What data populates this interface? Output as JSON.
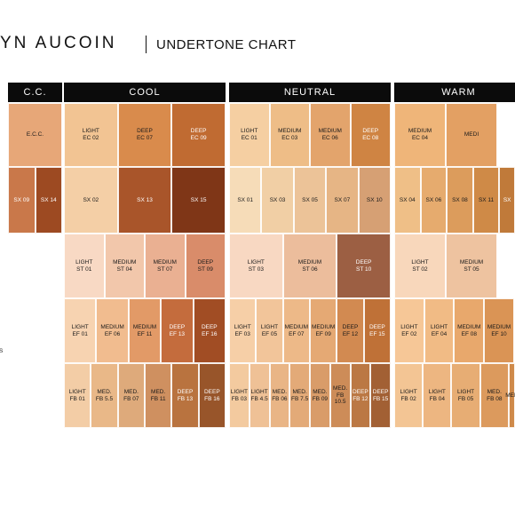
{
  "header": {
    "brand": "YN AUCOIN",
    "subtitle": "UNDERTONE CHART"
  },
  "side_label": "S",
  "columns": [
    {
      "id": "cc",
      "label": "C.C."
    },
    {
      "id": "cool",
      "label": "COOL"
    },
    {
      "id": "neutral",
      "label": "NEUTRAL"
    },
    {
      "id": "warm",
      "label": "WARM"
    }
  ],
  "rows": {
    "ec": {
      "cc": [
        {
          "label": "E.C.C.",
          "color": "#e7a778"
        }
      ],
      "cool": [
        {
          "label": "LIGHT\nEC 02",
          "color": "#f2c493"
        },
        {
          "label": "DEEP\nEC 07",
          "color": "#d98b4c"
        },
        {
          "label": "DEEP\nEC 09",
          "color": "#c06b32"
        }
      ],
      "neutral": [
        {
          "label": "LIGHT\nEC 01",
          "color": "#f5cfa2"
        },
        {
          "label": "MEDIUM\nEC 03",
          "color": "#eebd87"
        },
        {
          "label": "MEDIUM\nEC 06",
          "color": "#e3a46c"
        },
        {
          "label": "DEEP\nEC 08",
          "color": "#cf8443"
        }
      ],
      "warm": [
        {
          "label": "MEDIUM\nEC 04",
          "color": "#efb579"
        },
        {
          "label": "MEDI",
          "color": "#e3a063"
        }
      ]
    },
    "sx": {
      "cc": [
        {
          "label": "SX 09",
          "color": "#c9784a"
        },
        {
          "label": "SX 14",
          "color": "#9d4a22"
        }
      ],
      "cool": [
        {
          "label": "SX 02",
          "color": "#f4cfa6"
        },
        {
          "label": "SX 13",
          "color": "#a9552a"
        },
        {
          "label": "SX 15",
          "color": "#7f3617"
        }
      ],
      "neutral": [
        {
          "label": "SX 01",
          "color": "#f6dcb8"
        },
        {
          "label": "SX 03",
          "color": "#f1cfa5"
        },
        {
          "label": "SX 05",
          "color": "#ecc398"
        },
        {
          "label": "SX 07",
          "color": "#e6b585"
        },
        {
          "label": "SX 10",
          "color": "#d6a074"
        }
      ],
      "warm": [
        {
          "label": "SX 04",
          "color": "#efbf87"
        },
        {
          "label": "SX 06",
          "color": "#e6ab6e"
        },
        {
          "label": "SX 08",
          "color": "#dc9c5c"
        },
        {
          "label": "SX 11",
          "color": "#cf8a47"
        },
        {
          "label": "SX",
          "color": "#c07a3a"
        }
      ]
    },
    "st": {
      "cool": [
        {
          "label": "LIGHT\nST 01",
          "color": "#f8d9c4"
        },
        {
          "label": "MEDIUM\nST 04",
          "color": "#f2c7ab"
        },
        {
          "label": "MEDIUM\nST 07",
          "color": "#eab092"
        },
        {
          "label": "DEEP\nST 09",
          "color": "#d98c6a"
        }
      ],
      "neutral": [
        {
          "label": "LIGHT\nST 03",
          "color": "#f8d8c2"
        },
        {
          "label": "MEDIUM\nST 06",
          "color": "#ecbd9c"
        },
        {
          "label": "DEEP\nST 10",
          "color": "#9c5f43"
        }
      ],
      "warm": [
        {
          "label": "LIGHT\nST 02",
          "color": "#f8d7bb"
        },
        {
          "label": "MEDIUM\nST 05",
          "color": "#eec3a0"
        }
      ]
    },
    "ef": {
      "cool": [
        {
          "label": "LIGHT\nEF 01",
          "color": "#f7d3b1"
        },
        {
          "label": "MEDIUM\nEF 06",
          "color": "#f1bc8f"
        },
        {
          "label": "MEDIUM\nEF 11",
          "color": "#e29a67"
        },
        {
          "label": "DEEP\nEF 13",
          "color": "#c46c3d"
        },
        {
          "label": "DEEP\nEF 16",
          "color": "#a14d24"
        }
      ],
      "neutral": [
        {
          "label": "LIGHT\nEF 03",
          "color": "#f6cfa7"
        },
        {
          "label": "LIGHT\nEF 05",
          "color": "#f2c59a"
        },
        {
          "label": "MEDIUM\nEF 07",
          "color": "#edb988"
        },
        {
          "label": "MEDIUM\nEF 09",
          "color": "#e5a974"
        },
        {
          "label": "DEEP\nEF 12",
          "color": "#d28a51"
        },
        {
          "label": "DEEP\nEF 15",
          "color": "#bf7137"
        }
      ],
      "warm": [
        {
          "label": "LIGHT\nEF 02",
          "color": "#f6c797"
        },
        {
          "label": "LIGHT\nEF 04",
          "color": "#f1bb85"
        },
        {
          "label": "MEDIUM\nEF 08",
          "color": "#e8a86c"
        },
        {
          "label": "MEDIUM\nEF 10",
          "color": "#da9455"
        }
      ]
    },
    "fb": {
      "cool": [
        {
          "label": "LIGHT\nFB 01",
          "color": "#f3cda6"
        },
        {
          "label": "MED.\nFB 5.5",
          "color": "#e9b888"
        },
        {
          "label": "MED.\nFB 07",
          "color": "#deaa7b"
        },
        {
          "label": "MED.\nFB 11",
          "color": "#cf9060"
        },
        {
          "label": "DEEP\nFB 13",
          "color": "#b9733f"
        },
        {
          "label": "DEEP\nFB 16",
          "color": "#98552a"
        }
      ],
      "neutral": [
        {
          "label": "LIGHT\nFB 03",
          "color": "#f3ca9f"
        },
        {
          "label": "LIGHT\nFB 4.5",
          "color": "#efc196"
        },
        {
          "label": "MED.\nFB 06",
          "color": "#e9b586"
        },
        {
          "label": "MED.\nFB 7.5",
          "color": "#e3aa78"
        },
        {
          "label": "MED.\nFB 09",
          "color": "#d99c69"
        },
        {
          "label": "MED.\nFB 10.5",
          "color": "#cd8c58"
        },
        {
          "label": "DEEP\nFB 12",
          "color": "#bb7844"
        },
        {
          "label": "DEEP\nFB 15",
          "color": "#a26034"
        }
      ],
      "warm": [
        {
          "label": "LIGHT\nFB 02",
          "color": "#f3c594"
        },
        {
          "label": "LIGHT\nFB 04",
          "color": "#edb681"
        },
        {
          "label": "LIGHT\nFB 05",
          "color": "#e7ad74"
        },
        {
          "label": "MED.\nFB 08",
          "color": "#dc9a5d"
        },
        {
          "label": "MED",
          "color": "#cf8a4a"
        }
      ]
    }
  }
}
